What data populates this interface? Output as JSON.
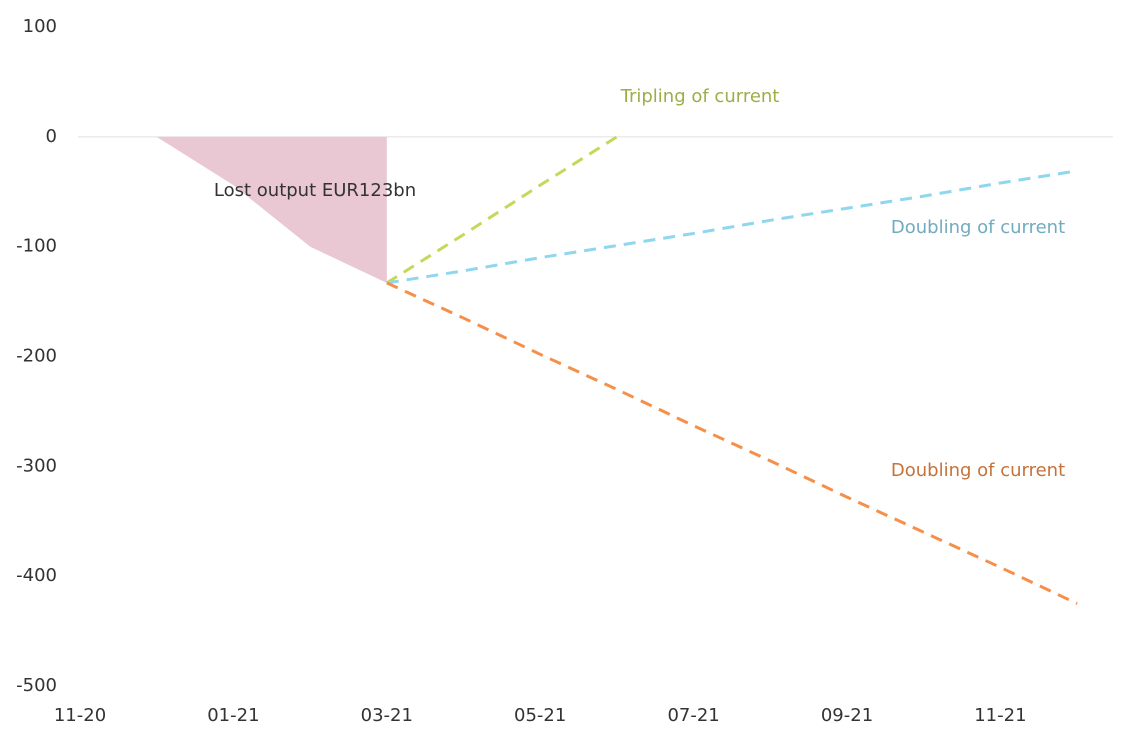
{
  "chart_data": {
    "type": "line",
    "x": [
      "11-20",
      null,
      "01-21",
      null,
      "03-21",
      null,
      "05-21",
      null,
      "07-21",
      null,
      "09-21",
      null,
      "11-21",
      null
    ],
    "ylim": [
      -500,
      100
    ],
    "yticks": [
      100,
      0,
      -100,
      -200,
      -300,
      -400,
      -500
    ],
    "series": [
      {
        "name": "Lost output EUR123bn",
        "kind": "area",
        "color": "#e9c7d3",
        "values": [
          null,
          0,
          -44,
          -100,
          -133,
          null,
          null,
          null,
          null,
          null,
          null,
          null,
          null,
          null
        ]
      },
      {
        "name": "Tripling of current",
        "kind": "dashed",
        "color": "#c5d85a",
        "values": [
          null,
          null,
          null,
          null,
          -133,
          -89,
          -44,
          0,
          null,
          null,
          null,
          null,
          null,
          null
        ]
      },
      {
        "name": "Doubling of current",
        "kind": "dashed",
        "color": "#8fd6ef",
        "values": [
          null,
          null,
          null,
          null,
          -133,
          -122,
          -110,
          -99,
          -88,
          -76,
          -65,
          -54,
          -42,
          -31
        ]
      },
      {
        "name": "Doubling of current",
        "kind": "dashed",
        "color": "#f5904a",
        "values": [
          null,
          null,
          null,
          null,
          -133,
          -165,
          -198,
          -230,
          -263,
          -295,
          -328,
          -360,
          -392,
          -425
        ]
      }
    ]
  }
}
